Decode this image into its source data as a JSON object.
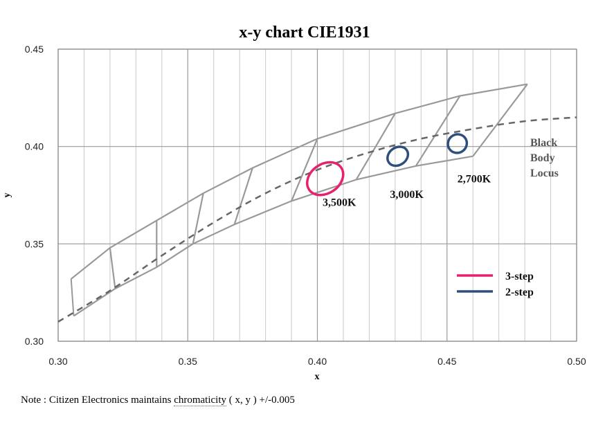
{
  "chart_data": {
    "type": "line",
    "title": "x-y chart  CIE1931",
    "xlabel": "x",
    "ylabel": "y",
    "xlim": [
      0.3,
      0.5
    ],
    "ylim": [
      0.3,
      0.45
    ],
    "x_ticks": [
      "0.30",
      "0.35",
      "0.40",
      "0.45",
      "0.50"
    ],
    "y_ticks": [
      "0.30",
      "0.35",
      "0.40",
      "0.45"
    ],
    "grid": true,
    "black_body_locus": {
      "label_lines": [
        "Black",
        "Body",
        "Locus"
      ],
      "points": [
        [
          0.3,
          0.31
        ],
        [
          0.32,
          0.326
        ],
        [
          0.34,
          0.344
        ],
        [
          0.36,
          0.361
        ],
        [
          0.38,
          0.376
        ],
        [
          0.4,
          0.388
        ],
        [
          0.42,
          0.397
        ],
        [
          0.44,
          0.404
        ],
        [
          0.46,
          0.409
        ],
        [
          0.48,
          0.413
        ],
        [
          0.5,
          0.415
        ]
      ]
    },
    "bins": {
      "upper_boundary": [
        [
          0.305,
          0.332
        ],
        [
          0.32,
          0.348
        ],
        [
          0.338,
          0.362
        ],
        [
          0.356,
          0.376
        ],
        [
          0.375,
          0.389
        ],
        [
          0.4,
          0.404
        ],
        [
          0.43,
          0.417
        ],
        [
          0.455,
          0.426
        ],
        [
          0.481,
          0.432
        ]
      ],
      "lower_boundary": [
        [
          0.306,
          0.313
        ],
        [
          0.322,
          0.327
        ],
        [
          0.338,
          0.338
        ],
        [
          0.352,
          0.35
        ],
        [
          0.368,
          0.36
        ],
        [
          0.39,
          0.372
        ],
        [
          0.415,
          0.383
        ],
        [
          0.438,
          0.39
        ],
        [
          0.46,
          0.395
        ]
      ],
      "dividers": [
        [
          [
            0.32,
            0.348
          ],
          [
            0.322,
            0.327
          ]
        ],
        [
          [
            0.338,
            0.362
          ],
          [
            0.338,
            0.338
          ]
        ],
        [
          [
            0.356,
            0.376
          ],
          [
            0.352,
            0.35
          ]
        ],
        [
          [
            0.375,
            0.389
          ],
          [
            0.368,
            0.36
          ]
        ],
        [
          [
            0.4,
            0.404
          ],
          [
            0.39,
            0.372
          ]
        ],
        [
          [
            0.43,
            0.417
          ],
          [
            0.415,
            0.383
          ]
        ],
        [
          [
            0.455,
            0.426
          ],
          [
            0.438,
            0.39
          ]
        ]
      ]
    },
    "ellipses": [
      {
        "label": "3,500K",
        "cx": 0.403,
        "cy": 0.3835,
        "rx": 0.0075,
        "ry": 0.0075,
        "series": "3-step"
      },
      {
        "label": "3,000K",
        "cx": 0.431,
        "cy": 0.395,
        "rx": 0.0042,
        "ry": 0.0045,
        "series": "2-step"
      },
      {
        "label": "2,700K",
        "cx": 0.454,
        "cy": 0.4015,
        "rx": 0.0037,
        "ry": 0.0047,
        "series": "2-step"
      }
    ],
    "cct_labels": [
      {
        "text": "3,500K",
        "x": 0.402,
        "y": 0.3695
      },
      {
        "text": "3,000K",
        "x": 0.428,
        "y": 0.3735
      },
      {
        "text": "2,700K",
        "x": 0.454,
        "y": 0.3815
      }
    ],
    "legend": {
      "placement": "bottom-right",
      "entries": [
        {
          "name": "3-step",
          "color": "#e8216e"
        },
        {
          "name": "2-step",
          "color": "#2e4f7c"
        }
      ]
    },
    "colors": {
      "grid": "#c8c8c8",
      "bins": "#999999",
      "locus": "#666666",
      "three_step": "#e8216e",
      "two_step": "#2e4f7c"
    }
  },
  "note": {
    "prefix": "Note : Citizen Electronics maintains ",
    "dotted_word": "chromaticity",
    "suffix": " ( x, y ) +/-0.005"
  }
}
